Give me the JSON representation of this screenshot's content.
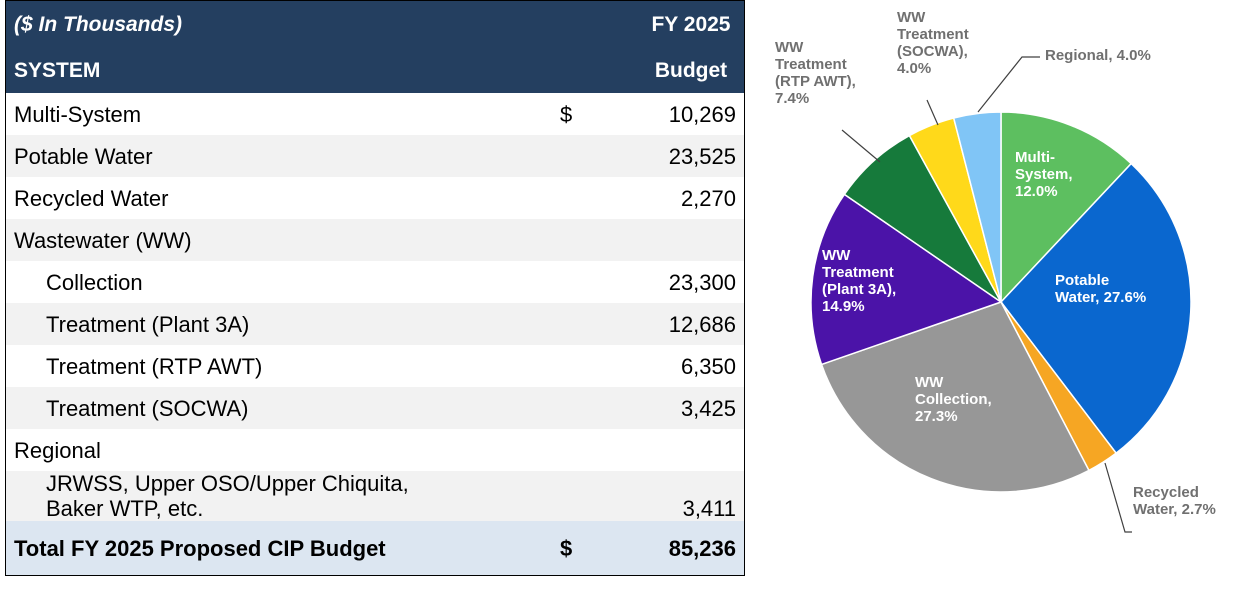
{
  "table": {
    "header": [
      [
        "($ In Thousands)",
        "FY 2025"
      ],
      [
        "SYSTEM",
        "Budget"
      ]
    ],
    "rows": [
      {
        "label": "Multi-System",
        "currency": "$",
        "amount": "10,269",
        "level": 0
      },
      {
        "label": "Potable Water",
        "amount": "23,525",
        "level": 0
      },
      {
        "label": "Recycled Water",
        "amount": "2,270",
        "level": 0
      },
      {
        "label": "Wastewater (WW)",
        "level": 0
      },
      {
        "label": "Collection",
        "amount": "23,300",
        "level": 1
      },
      {
        "label": "Treatment (Plant 3A)",
        "amount": "12,686",
        "level": 1
      },
      {
        "label": "Treatment (RTP AWT)",
        "amount": "6,350",
        "level": 1
      },
      {
        "label": "Treatment (SOCWA)",
        "amount": "3,425",
        "level": 1
      },
      {
        "label": "Regional",
        "level": 0
      },
      {
        "label": "JRWSS, Upper OSO/Upper Chiquita,\nBaker WTP, etc.",
        "amount": "3,411",
        "level": 1
      }
    ],
    "total": {
      "label": "Total FY 2025 Proposed CIP Budget",
      "currency": "$",
      "amount": "85,236"
    }
  },
  "chart_data": {
    "type": "pie",
    "values": [
      12.0,
      27.6,
      2.7,
      27.3,
      14.9,
      7.4,
      4.0,
      4.0
    ],
    "value_labels": [
      "Multi-\nSystem,\n12.0%",
      "Potable\nWater, 27.6%",
      "Recycled\nWater, 2.7%",
      "WW\nCollection,\n27.3%",
      "WW\nTreatment\n(Plant 3A),\n14.9%",
      "WW\nTreatment\n(RTP AWT),\n7.4%",
      "WW\nTreatment\n(SOCWA),\n4.0%",
      "Regional, 4.0%"
    ],
    "colors": [
      "#5dbf60",
      "#0a67cf",
      "#f6a623",
      "#979797",
      "#4b13a8",
      "#167a3b",
      "#ffd91a",
      "#80c5f6"
    ]
  }
}
